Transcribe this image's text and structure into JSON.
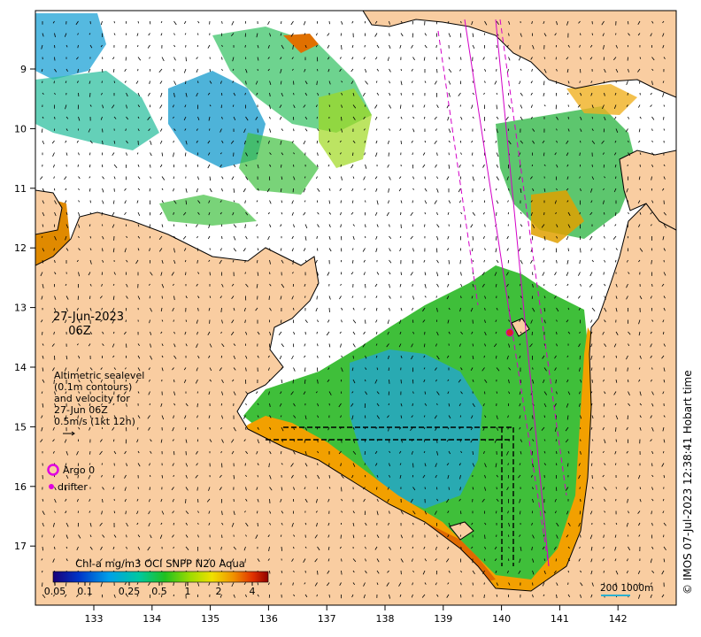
{
  "map": {
    "date_text": "27-Jun-2023",
    "time_text": "06Z",
    "lon_ticks": [
      "133",
      "134",
      "135",
      "136",
      "137",
      "138",
      "139",
      "140",
      "141",
      "142"
    ],
    "lat_ticks": [
      "9",
      "10",
      "11",
      "12",
      "13",
      "14",
      "15",
      "16",
      "17"
    ],
    "colors": {
      "land": "#f9cda1",
      "sea": "#ffffff",
      "coast": "#000000",
      "arrow": "#000000",
      "track": "#d400c8"
    }
  },
  "legend": {
    "line1": "Altimetric sealevel",
    "line2": "(0.1m contours)",
    "line3": "and velocity for",
    "line4": "27-Jun 06Z",
    "line5": "0.5m/s (1kt 12h)",
    "argo_label": "Argo 0",
    "drifter_label": "drifter"
  },
  "colorbar": {
    "title": "Chl-a mg/m3 OCI SNPP N20 Aqua",
    "ticks": [
      "0.05",
      "0.1",
      "0.25",
      "0.5",
      "1",
      "2",
      "4"
    ]
  },
  "scale": {
    "label": "200 1000m"
  },
  "credit": "© IMOS 07-Jul-2023 12:38:41 Hobart time"
}
